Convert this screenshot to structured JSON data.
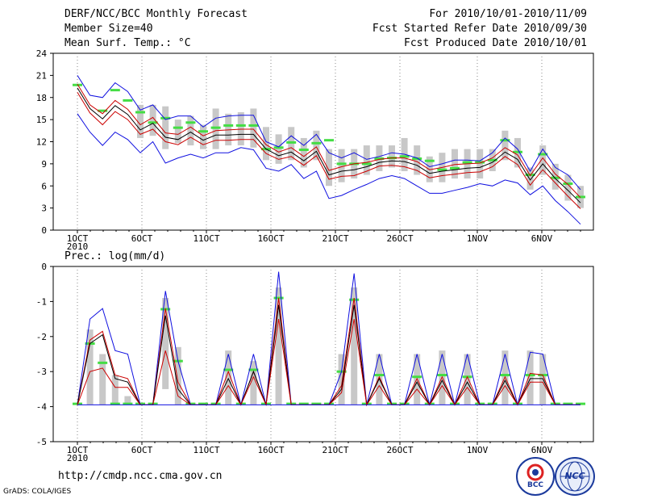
{
  "header": {
    "title": "DERF/NCC/BCC Monthly Forecast",
    "member_size": "Member Size=40",
    "variable": "Mean Surf. Temp.: °C",
    "period": "For 2010/10/01-2010/11/09",
    "started_refer": "Fcst Started Refer Date 2010/09/30",
    "produced": "Fcst Produced Date 2010/10/01"
  },
  "footer": {
    "url": "http://cmdp.ncc.cma.gov.cn",
    "grads": "GrADS: COLA/IGES"
  },
  "logos": {
    "bcc": "BCC",
    "ncc": "NCC"
  },
  "colors": {
    "envelope": "#1010e0",
    "ensemble_mean": "#000000",
    "members": "#cc0000",
    "climatology": "#44dd44",
    "spread_bar": "#c8c8c8",
    "grid": "#888888"
  },
  "chart_data": [
    {
      "type": "line",
      "title": "Mean Surf. Temp.: °C",
      "ylim": [
        0,
        24
      ],
      "yticks": [
        0,
        3,
        6,
        9,
        12,
        15,
        18,
        21,
        24
      ],
      "xlim": [
        1,
        40
      ],
      "xticks": [
        {
          "day": 1,
          "label": "1OCT",
          "sub": "2010"
        },
        {
          "day": 6,
          "label": "6OCT"
        },
        {
          "day": 11,
          "label": "11OCT"
        },
        {
          "day": 16,
          "label": "16OCT"
        },
        {
          "day": 21,
          "label": "21OCT"
        },
        {
          "day": 26,
          "label": "26OCT"
        },
        {
          "day": 32,
          "label": "1NOV"
        },
        {
          "day": 37,
          "label": "6NOV"
        }
      ],
      "series": [
        {
          "name": "max",
          "values": [
            21.0,
            18.3,
            18.0,
            20.0,
            18.8,
            16.3,
            17.0,
            15.0,
            15.5,
            15.5,
            14.0,
            15.2,
            15.5,
            15.6,
            15.6,
            12.0,
            11.3,
            12.8,
            11.5,
            13.0,
            10.5,
            9.8,
            10.5,
            9.6,
            10.0,
            10.5,
            10.3,
            9.8,
            8.6,
            9.0,
            9.5,
            9.5,
            9.4,
            10.5,
            12.5,
            11.0,
            8.0,
            11.0,
            8.5,
            7.5,
            5.5
          ]
        },
        {
          "name": "upper",
          "values": [
            19.8,
            17.0,
            15.8,
            17.6,
            16.4,
            14.3,
            15.3,
            13.2,
            13.0,
            14.0,
            12.8,
            13.5,
            13.6,
            13.7,
            13.7,
            11.6,
            10.6,
            11.2,
            10.0,
            11.3,
            8.1,
            8.6,
            9.0,
            9.2,
            9.6,
            9.8,
            9.8,
            9.3,
            8.2,
            8.5,
            8.9,
            9.0,
            9.1,
            9.8,
            11.2,
            10.2,
            7.4,
            9.8,
            7.6,
            6.2,
            4.4
          ]
        },
        {
          "name": "mean",
          "values": [
            19.3,
            16.5,
            15.1,
            16.9,
            15.7,
            13.6,
            14.5,
            12.6,
            12.3,
            13.3,
            12.2,
            12.9,
            12.9,
            13.0,
            13.0,
            11.0,
            10.1,
            10.6,
            9.4,
            10.7,
            7.5,
            8.0,
            8.2,
            8.6,
            9.2,
            9.4,
            9.3,
            8.8,
            7.7,
            8.0,
            8.2,
            8.4,
            8.5,
            9.2,
            10.6,
            9.6,
            6.8,
            9.0,
            7.0,
            5.4,
            3.7
          ]
        },
        {
          "name": "lower",
          "values": [
            18.7,
            15.9,
            14.3,
            16.1,
            15.0,
            13.0,
            13.7,
            12.0,
            11.6,
            12.6,
            11.6,
            12.2,
            12.2,
            12.3,
            12.3,
            10.4,
            9.6,
            10.0,
            8.8,
            10.1,
            6.9,
            7.3,
            7.4,
            8.0,
            8.7,
            8.8,
            8.6,
            8.1,
            7.1,
            7.4,
            7.6,
            7.8,
            7.9,
            8.6,
            10.0,
            8.9,
            6.1,
            8.2,
            6.4,
            4.6,
            2.9
          ]
        },
        {
          "name": "min",
          "values": [
            15.8,
            13.3,
            11.5,
            13.3,
            12.3,
            10.5,
            12.0,
            9.1,
            9.8,
            10.3,
            9.8,
            10.5,
            10.5,
            11.2,
            10.9,
            8.4,
            8.0,
            8.9,
            7.0,
            8.0,
            4.3,
            4.7,
            5.5,
            6.2,
            7.0,
            7.4,
            7.0,
            6.0,
            5.0,
            5.0,
            5.4,
            5.8,
            6.3,
            6.0,
            6.8,
            6.4,
            4.8,
            6.0,
            4.0,
            2.5,
            0.8
          ]
        }
      ],
      "climatology": [
        19.7,
        null,
        16.2,
        19.0,
        17.6,
        16.0,
        14.6,
        15.2,
        13.9,
        14.6,
        13.4,
        13.9,
        14.2,
        14.2,
        14.2,
        11.0,
        11.2,
        11.9,
        10.9,
        11.8,
        12.2,
        9.0,
        9.0,
        9.0,
        9.7,
        9.8,
        10.0,
        9.7,
        9.4,
        8.2,
        8.4,
        9.2,
        9.2,
        9.5,
        12.2,
        10.6,
        7.5,
        10.3,
        7.1,
        6.3,
        4.5
      ],
      "bars": [
        [
          null,
          null
        ],
        [
          null,
          null
        ],
        [
          null,
          null
        ],
        [
          null,
          null
        ],
        [
          null,
          null
        ],
        [
          12.5,
          17.0
        ],
        [
          12.8,
          17.0
        ],
        [
          11.0,
          16.8
        ],
        [
          11.8,
          15.0
        ],
        [
          11.5,
          15.5
        ],
        [
          11.0,
          14.3
        ],
        [
          11.0,
          16.5
        ],
        [
          11.5,
          15.8
        ],
        [
          11.5,
          16.0
        ],
        [
          11.2,
          16.5
        ],
        [
          9.5,
          14.0
        ],
        [
          9.0,
          13.0
        ],
        [
          9.5,
          14.0
        ],
        [
          8.5,
          12.5
        ],
        [
          9.5,
          13.5
        ],
        [
          6.0,
          11.0
        ],
        [
          6.5,
          11.0
        ],
        [
          7.0,
          11.0
        ],
        [
          7.5,
          11.5
        ],
        [
          8.0,
          11.5
        ],
        [
          8.5,
          11.5
        ],
        [
          8.0,
          12.5
        ],
        [
          7.5,
          11.5
        ],
        [
          6.5,
          10.0
        ],
        [
          6.5,
          10.5
        ],
        [
          7.0,
          11.0
        ],
        [
          7.0,
          11.0
        ],
        [
          7.0,
          11.0
        ],
        [
          8.0,
          11.0
        ],
        [
          9.5,
          13.5
        ],
        [
          8.5,
          12.5
        ],
        [
          5.5,
          8.5
        ],
        [
          7.5,
          11.5
        ],
        [
          5.5,
          9.0
        ],
        [
          4.0,
          7.5
        ],
        [
          3.0,
          6.0
        ]
      ]
    },
    {
      "type": "line",
      "title": "Prec.: log(mm/d)",
      "ylim": [
        -5,
        0
      ],
      "yticks": [
        -5,
        -4,
        -3,
        -2,
        -1,
        0
      ],
      "xlim": [
        1,
        40
      ],
      "xticks": [
        {
          "day": 1,
          "label": "1OCT",
          "sub": "2010"
        },
        {
          "day": 6,
          "label": "6OCT"
        },
        {
          "day": 11,
          "label": "11OCT"
        },
        {
          "day": 16,
          "label": "16OCT"
        },
        {
          "day": 21,
          "label": "21OCT"
        },
        {
          "day": 26,
          "label": "26OCT"
        },
        {
          "day": 32,
          "label": "1NOV"
        },
        {
          "day": 37,
          "label": "6NOV"
        }
      ],
      "series": [
        {
          "name": "max",
          "values": [
            -3.95,
            -1.5,
            -1.2,
            -2.4,
            -2.5,
            -3.95,
            -3.95,
            -0.7,
            -2.7,
            -3.95,
            -3.95,
            -3.95,
            -2.5,
            -3.95,
            -2.5,
            -3.95,
            -0.15,
            -3.95,
            -3.95,
            -3.95,
            -3.95,
            -3.0,
            -0.2,
            -3.95,
            -2.5,
            -3.95,
            -3.95,
            -2.5,
            -3.95,
            -2.5,
            -3.95,
            -2.5,
            -3.95,
            -3.95,
            -2.5,
            -3.95,
            -2.45,
            -2.5,
            -3.95,
            -3.95,
            -3.95
          ]
        },
        {
          "name": "upper",
          "values": [
            -3.95,
            -2.1,
            -1.85,
            -3.1,
            -3.2,
            -3.95,
            -3.95,
            -1.2,
            -3.3,
            -3.95,
            -3.95,
            -3.95,
            -3.0,
            -3.95,
            -3.0,
            -3.95,
            -0.9,
            -3.95,
            -3.95,
            -3.95,
            -3.95,
            -3.4,
            -0.9,
            -3.95,
            -3.15,
            -3.95,
            -3.95,
            -3.2,
            -3.95,
            -3.15,
            -3.95,
            -3.15,
            -3.95,
            -3.95,
            -3.15,
            -3.95,
            -3.05,
            -3.1,
            -3.95,
            -3.95,
            -3.95
          ]
        },
        {
          "name": "mean",
          "values": [
            -3.95,
            -2.2,
            -1.95,
            -3.2,
            -3.3,
            -3.95,
            -3.95,
            -1.4,
            -3.5,
            -3.95,
            -3.95,
            -3.95,
            -3.2,
            -3.95,
            -3.0,
            -3.95,
            -1.1,
            -3.95,
            -3.95,
            -3.95,
            -3.95,
            -3.5,
            -1.1,
            -3.95,
            -3.2,
            -3.95,
            -3.95,
            -3.3,
            -3.95,
            -3.25,
            -3.95,
            -3.3,
            -3.95,
            -3.95,
            -3.25,
            -3.95,
            -3.2,
            -3.2,
            -3.95,
            -3.95,
            -3.95
          ]
        },
        {
          "name": "lower",
          "values": [
            -3.95,
            -3.0,
            -2.9,
            -3.45,
            -3.45,
            -3.95,
            -3.95,
            -2.4,
            -3.7,
            -3.95,
            -3.95,
            -3.95,
            -3.4,
            -3.95,
            -3.15,
            -3.95,
            -1.5,
            -3.95,
            -3.95,
            -3.95,
            -3.95,
            -3.6,
            -1.5,
            -3.95,
            -3.4,
            -3.95,
            -3.95,
            -3.5,
            -3.95,
            -3.4,
            -3.95,
            -3.45,
            -3.95,
            -3.95,
            -3.4,
            -3.95,
            -3.3,
            -3.3,
            -3.95,
            -3.95,
            -3.95
          ]
        },
        {
          "name": "min",
          "values": [
            -3.95,
            -3.95,
            -3.95,
            -3.95,
            -3.95,
            -3.95,
            -3.95,
            -3.95,
            -3.95,
            -3.95,
            -3.95,
            -3.95,
            -3.95,
            -3.95,
            -3.95,
            -3.95,
            -3.95,
            -3.95,
            -3.95,
            -3.95,
            -3.95,
            -3.95,
            -3.95,
            -3.95,
            -3.95,
            -3.95,
            -3.95,
            -3.95,
            -3.95,
            -3.95,
            -3.95,
            -3.95,
            -3.95,
            -3.95,
            -3.95,
            -3.95,
            -3.95,
            -3.95,
            -3.95,
            -3.95,
            -3.95
          ]
        }
      ],
      "climatology": [
        -3.92,
        -2.2,
        -2.75,
        -3.92,
        -3.92,
        -3.92,
        -3.92,
        -1.22,
        -2.7,
        -3.92,
        -3.92,
        -3.92,
        -2.95,
        -3.92,
        -2.95,
        -3.92,
        -0.9,
        -3.92,
        -3.92,
        -3.92,
        -3.92,
        -3.0,
        -0.95,
        -3.92,
        -3.1,
        -3.92,
        -3.92,
        -3.15,
        -3.92,
        -3.1,
        -3.92,
        -3.15,
        -3.92,
        -3.92,
        -3.1,
        -3.92,
        -3.1,
        -3.1,
        -3.92,
        -3.92,
        -3.92
      ],
      "bars": [
        [
          null,
          null
        ],
        [
          -3.95,
          -1.8
        ],
        [
          -3.95,
          -2.5
        ],
        [
          -3.95,
          -3.1
        ],
        [
          -3.95,
          -3.7
        ],
        [
          null,
          null
        ],
        [
          null,
          null
        ],
        [
          -3.5,
          -0.9
        ],
        [
          -3.95,
          -2.3
        ],
        [
          null,
          null
        ],
        [
          null,
          null
        ],
        [
          null,
          null
        ],
        [
          -3.95,
          -2.4
        ],
        [
          null,
          null
        ],
        [
          -3.95,
          -2.7
        ],
        [
          null,
          null
        ],
        [
          -3.95,
          -0.6
        ],
        [
          null,
          null
        ],
        [
          null,
          null
        ],
        [
          null,
          null
        ],
        [
          null,
          null
        ],
        [
          -3.95,
          -2.5
        ],
        [
          -3.95,
          -0.6
        ],
        [
          null,
          null
        ],
        [
          -3.95,
          -2.5
        ],
        [
          null,
          null
        ],
        [
          null,
          null
        ],
        [
          -3.95,
          -2.5
        ],
        [
          null,
          null
        ],
        [
          -3.95,
          -2.4
        ],
        [
          null,
          null
        ],
        [
          -3.95,
          -2.5
        ],
        [
          null,
          null
        ],
        [
          null,
          null
        ],
        [
          -3.95,
          -2.4
        ],
        [
          null,
          null
        ],
        [
          -3.95,
          -2.4
        ],
        [
          -3.95,
          -2.5
        ],
        [
          null,
          null
        ],
        [
          null,
          null
        ],
        [
          null,
          null
        ]
      ]
    }
  ]
}
